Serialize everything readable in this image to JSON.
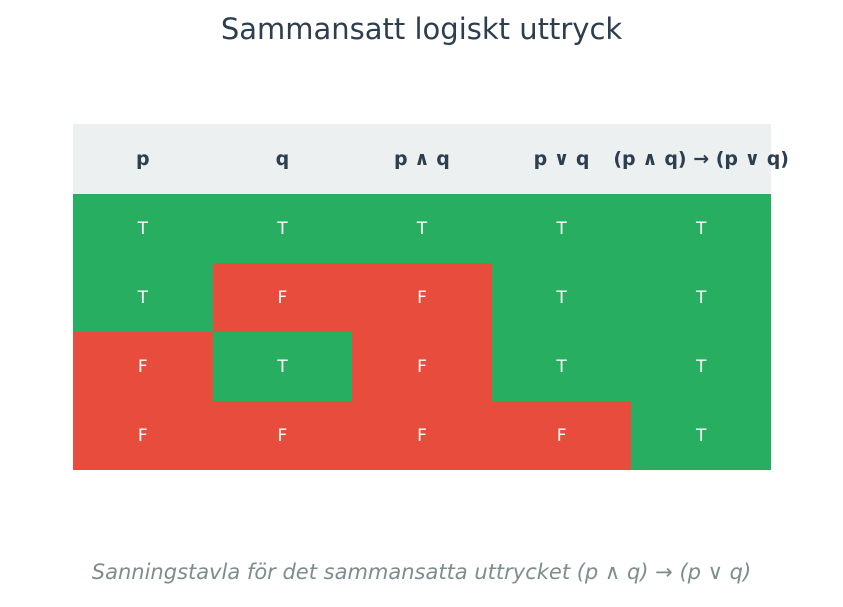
{
  "title": "Sammansatt logiskt uttryck",
  "caption": "Sanningstavla för det sammansatta uttrycket (p ∧ q) → (p ∨ q)",
  "colors": {
    "true": "#27ae60",
    "false": "#e74c3c",
    "header_bg": "#ecf0f1",
    "header_text": "#2c3e50",
    "caption": "#7f8c8d"
  },
  "chart_data": {
    "type": "table",
    "columns": [
      "p",
      "q",
      "p ∧ q",
      "p ∨ q",
      "(p ∧ q) → (p ∨ q)"
    ],
    "rows": [
      [
        "T",
        "T",
        "T",
        "T",
        "T"
      ],
      [
        "T",
        "F",
        "F",
        "T",
        "T"
      ],
      [
        "F",
        "T",
        "F",
        "T",
        "T"
      ],
      [
        "F",
        "F",
        "F",
        "F",
        "T"
      ]
    ]
  }
}
